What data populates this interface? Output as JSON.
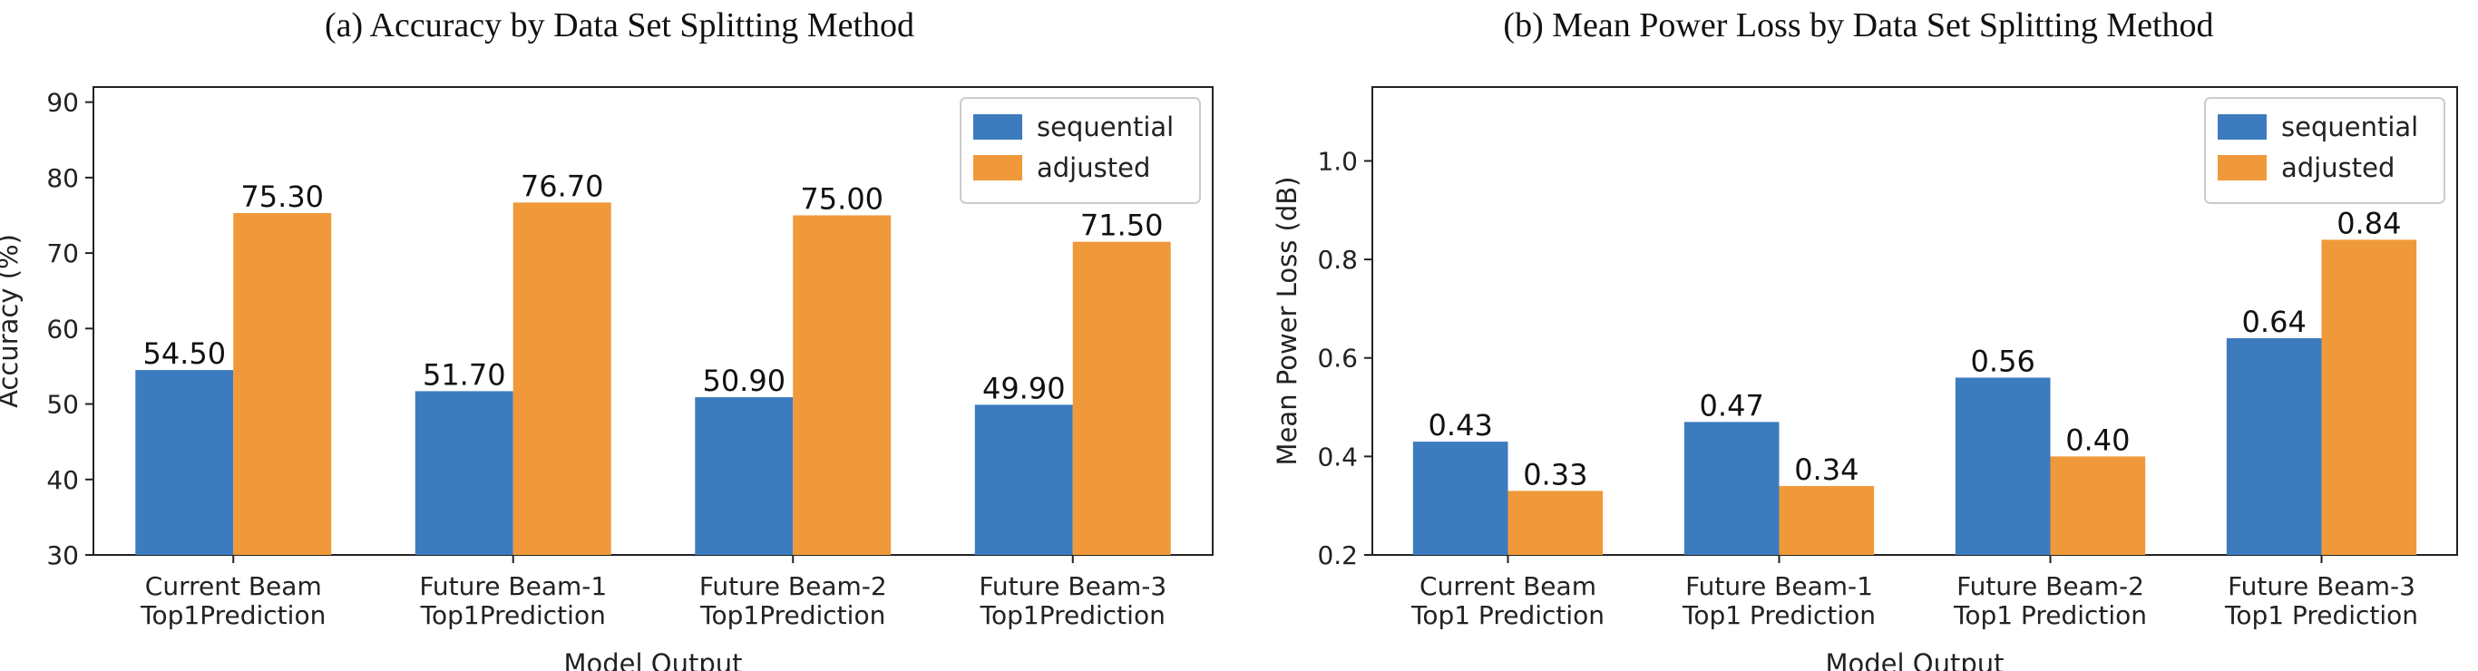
{
  "colors": {
    "sequential": "#3d7bbf",
    "adjusted": "#f0993a"
  },
  "chart_data": [
    {
      "type": "bar",
      "title": "(a) Accuracy by Data Set Splitting Method",
      "xlabel": "Model Output",
      "ylabel": "Accuracy (%)",
      "ylim": [
        30,
        92
      ],
      "yticks": [
        "30",
        "40",
        "50",
        "60",
        "70",
        "80",
        "90"
      ],
      "categories": [
        [
          "Current Beam",
          "Top1Prediction"
        ],
        [
          "Future Beam-1",
          "Top1Prediction"
        ],
        [
          "Future Beam-2",
          "Top1Prediction"
        ],
        [
          "Future Beam-3",
          "Top1Prediction"
        ]
      ],
      "series": [
        {
          "name": "sequential",
          "values": [
            54.5,
            51.7,
            50.9,
            49.9
          ],
          "labels": [
            "54.50",
            "51.70",
            "50.90",
            "49.90"
          ]
        },
        {
          "name": "adjusted",
          "values": [
            75.3,
            76.7,
            75.0,
            71.5
          ],
          "labels": [
            "75.30",
            "76.70",
            "75.00",
            "71.50"
          ]
        }
      ],
      "legend": "top-right",
      "grid": false
    },
    {
      "type": "bar",
      "title": "(b) Mean Power Loss by Data Set Splitting Method",
      "xlabel": "Model Output",
      "ylabel": "Mean Power Loss (dB)",
      "ylim": [
        0.2,
        1.15
      ],
      "yticks": [
        "0.2",
        "0.4",
        "0.6",
        "0.8",
        "1.0"
      ],
      "categories": [
        [
          "Current Beam",
          "Top1 Prediction"
        ],
        [
          "Future Beam-1",
          "Top1 Prediction"
        ],
        [
          "Future Beam-2",
          "Top1 Prediction"
        ],
        [
          "Future Beam-3",
          "Top1 Prediction"
        ]
      ],
      "series": [
        {
          "name": "sequential",
          "values": [
            0.43,
            0.47,
            0.56,
            0.64
          ],
          "labels": [
            "0.43",
            "0.47",
            "0.56",
            "0.64"
          ]
        },
        {
          "name": "adjusted",
          "values": [
            0.33,
            0.34,
            0.4,
            0.84
          ],
          "labels": [
            "0.33",
            "0.34",
            "0.40",
            "0.84"
          ]
        }
      ],
      "legend": "top-right",
      "grid": false
    }
  ]
}
